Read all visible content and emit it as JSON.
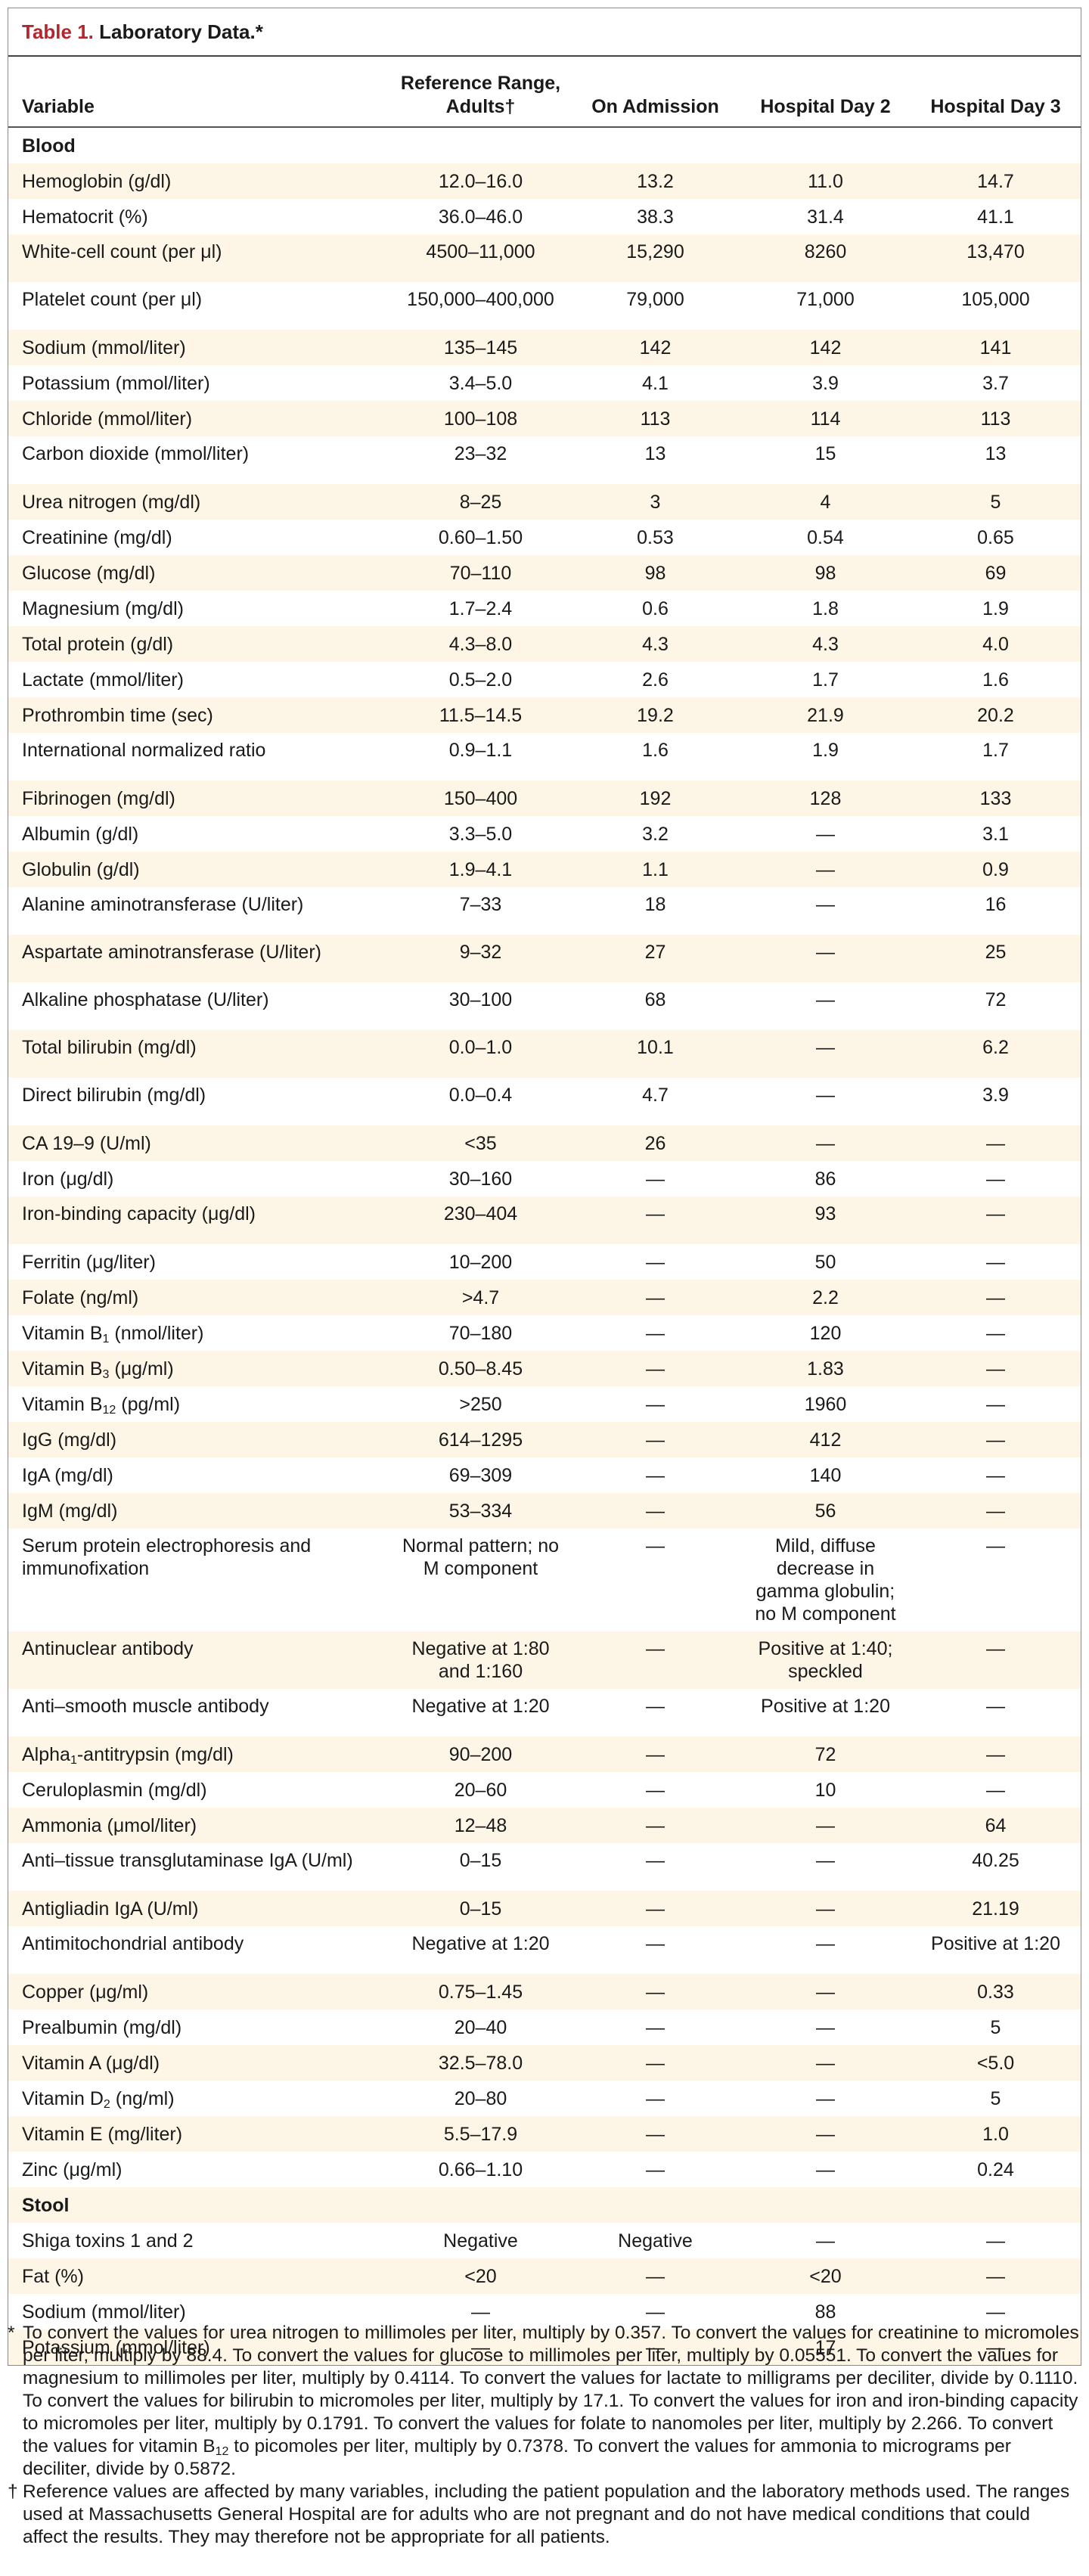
{
  "title": {
    "label": "Table 1.",
    "text": "Laboratory Data.*"
  },
  "table": {
    "header": [
      "Variable",
      "Reference Range, Adults†",
      "On Admission",
      "Hospital Day 2",
      "Hospital Day 3"
    ],
    "rows": [
      {
        "section": "Blood"
      },
      {
        "cells": [
          "Hemoglobin (g/dl)",
          "12.0–16.0",
          "13.2",
          "11.0",
          "14.7"
        ]
      },
      {
        "cells": [
          "Hematocrit (%)",
          "36.0–46.0",
          "38.3",
          "31.4",
          "41.1"
        ]
      },
      {
        "cells": [
          "White-cell count (per μl)",
          "4500–11,000",
          "15,290",
          "8260",
          "13,470"
        ]
      },
      {
        "cells": [
          "Platelet count (per μl)",
          "150,000–400,000",
          "79,000",
          "71,000",
          "105,000"
        ]
      },
      {
        "cells": [
          "Sodium (mmol/liter)",
          "135–145",
          "142",
          "142",
          "141"
        ]
      },
      {
        "cells": [
          "Potassium (mmol/liter)",
          "3.4–5.0",
          "4.1",
          "3.9",
          "3.7"
        ]
      },
      {
        "cells": [
          "Chloride (mmol/liter)",
          "100–108",
          "113",
          "114",
          "113"
        ]
      },
      {
        "cells": [
          "Carbon dioxide (mmol/liter)",
          "23–32",
          "13",
          "15",
          "13"
        ]
      },
      {
        "cells": [
          "Urea nitrogen (mg/dl)",
          "8–25",
          "3",
          "4",
          "5"
        ]
      },
      {
        "cells": [
          "Creatinine (mg/dl)",
          "0.60–1.50",
          "0.53",
          "0.54",
          "0.65"
        ]
      },
      {
        "cells": [
          "Glucose (mg/dl)",
          "70–110",
          "98",
          "98",
          "69"
        ]
      },
      {
        "cells": [
          "Magnesium (mg/dl)",
          "1.7–2.4",
          "0.6",
          "1.8",
          "1.9"
        ]
      },
      {
        "cells": [
          "Total protein (g/dl)",
          "4.3–8.0",
          "4.3",
          "4.3",
          "4.0"
        ]
      },
      {
        "cells": [
          "Lactate (mmol/liter)",
          "0.5–2.0",
          "2.6",
          "1.7",
          "1.6"
        ]
      },
      {
        "cells": [
          "Prothrombin time (sec)",
          "11.5–14.5",
          "19.2",
          "21.9",
          "20.2"
        ]
      },
      {
        "cells": [
          "International normalized ratio",
          "0.9–1.1",
          "1.6",
          "1.9",
          "1.7"
        ]
      },
      {
        "cells": [
          "Fibrinogen (mg/dl)",
          "150–400",
          "192",
          "128",
          "133"
        ]
      },
      {
        "cells": [
          "Albumin (g/dl)",
          "3.3–5.0",
          "3.2",
          "—",
          "3.1"
        ]
      },
      {
        "cells": [
          "Globulin (g/dl)",
          "1.9–4.1",
          "1.1",
          "—",
          "0.9"
        ]
      },
      {
        "cells": [
          "Alanine aminotransferase (U/liter)",
          "7–33",
          "18",
          "—",
          "16"
        ]
      },
      {
        "cells": [
          "Aspartate aminotransferase (U/liter)",
          "9–32",
          "27",
          "—",
          "25"
        ]
      },
      {
        "cells": [
          "Alkaline phosphatase (U/liter)",
          "30–100",
          "68",
          "—",
          "72"
        ]
      },
      {
        "cells": [
          "Total bilirubin (mg/dl)",
          "0.0–1.0",
          "10.1",
          "—",
          "6.2"
        ]
      },
      {
        "cells": [
          "Direct bilirubin (mg/dl)",
          "0.0–0.4",
          "4.7",
          "—",
          "3.9"
        ]
      },
      {
        "cells": [
          "CA 19–9 (U/ml)",
          "<35",
          "26",
          "—",
          "—"
        ]
      },
      {
        "cells": [
          "Iron (μg/dl)",
          "30–160",
          "—",
          "86",
          "—"
        ]
      },
      {
        "cells": [
          "Iron-binding capacity (μg/dl)",
          "230–404",
          "—",
          "93",
          "—"
        ]
      },
      {
        "cells": [
          "Ferritin (μg/liter)",
          "10–200",
          "—",
          "50",
          "—"
        ]
      },
      {
        "cells": [
          "Folate (ng/ml)",
          ">4.7",
          "—",
          "2.2",
          "—"
        ]
      },
      {
        "cells": [
          [
            "Vitamin B",
            "1",
            " (nmol/liter)"
          ],
          "70–180",
          "—",
          "120",
          "—"
        ]
      },
      {
        "cells": [
          [
            "Vitamin B",
            "3",
            " (μg/ml)"
          ],
          "0.50–8.45",
          "—",
          "1.83",
          "—"
        ]
      },
      {
        "cells": [
          [
            "Vitamin B",
            "12",
            " (pg/ml)"
          ],
          ">250",
          "—",
          "1960",
          "—"
        ]
      },
      {
        "cells": [
          "IgG (mg/dl)",
          "614–1295",
          "—",
          "412",
          "—"
        ]
      },
      {
        "cells": [
          "IgA (mg/dl)",
          "69–309",
          "—",
          "140",
          "—"
        ]
      },
      {
        "cells": [
          "IgM (mg/dl)",
          "53–334",
          "—",
          "56",
          "—"
        ]
      },
      {
        "cells": [
          "Serum protein electrophoresis and immunofixation",
          "Normal pattern; no M component",
          "—",
          "Mild, diffuse decrease in gamma globulin; no M component",
          "—"
        ]
      },
      {
        "cells": [
          "Antinuclear antibody",
          "Negative at 1:80 and 1:160",
          "—",
          "Positive at 1:40; speckled",
          "—"
        ]
      },
      {
        "cells": [
          "Anti–smooth muscle antibody",
          "Negative at 1:20",
          "—",
          "Positive at 1:20",
          "—"
        ]
      },
      {
        "cells": [
          [
            "Alpha",
            "1",
            "-antitrypsin (mg/dl)"
          ],
          "90–200",
          "—",
          "72",
          "—"
        ]
      },
      {
        "cells": [
          "Ceruloplasmin (mg/dl)",
          "20–60",
          "—",
          "10",
          "—"
        ]
      },
      {
        "cells": [
          "Ammonia (μmol/liter)",
          "12–48",
          "—",
          "—",
          "64"
        ]
      },
      {
        "cells": [
          "Anti–tissue transglutaminase IgA (U/ml)",
          "0–15",
          "—",
          "—",
          "40.25"
        ]
      },
      {
        "cells": [
          "Antigliadin IgA (U/ml)",
          "0–15",
          "—",
          "—",
          "21.19"
        ]
      },
      {
        "cells": [
          "Antimitochondrial antibody",
          "Negative at 1:20",
          "—",
          "—",
          "Positive at 1:20"
        ]
      },
      {
        "cells": [
          "Copper (μg/ml)",
          "0.75–1.45",
          "—",
          "—",
          "0.33"
        ]
      },
      {
        "cells": [
          "Prealbumin (mg/dl)",
          "20–40",
          "—",
          "—",
          "5"
        ]
      },
      {
        "cells": [
          "Vitamin A (μg/dl)",
          "32.5–78.0",
          "—",
          "—",
          "<5.0"
        ]
      },
      {
        "cells": [
          [
            "Vitamin D",
            "2",
            " (ng/ml)"
          ],
          "20–80",
          "—",
          "—",
          "5"
        ]
      },
      {
        "cells": [
          "Vitamin E (mg/liter)",
          "5.5–17.9",
          "—",
          "—",
          "1.0"
        ]
      },
      {
        "cells": [
          "Zinc (μg/ml)",
          "0.66–1.10",
          "—",
          "—",
          "0.24"
        ]
      },
      {
        "section": "Stool"
      },
      {
        "cells": [
          "Shiga toxins 1 and 2",
          "Negative",
          "Negative",
          "—",
          "—"
        ]
      },
      {
        "cells": [
          "Fat (%)",
          "<20",
          "—",
          "<20",
          "—"
        ]
      },
      {
        "cells": [
          "Sodium (mmol/liter)",
          "—",
          "—",
          "88",
          "—"
        ]
      },
      {
        "cells": [
          "Potassium (mmol/liter)",
          "—",
          "—",
          "17",
          "—"
        ]
      }
    ]
  },
  "footnotes": [
    {
      "mark": "*",
      "text": [
        "To convert the values for urea nitrogen to millimoles per liter, multiply by 0.357. To convert the values for creatinine to micromoles per liter, multiply by 88.4. To convert the values for glucose to millimoles per liter, multiply by 0.05551. To convert the values for magnesium to millimoles per liter, multiply by 0.4114. To convert the values for lactate to milligrams per deciliter, divide by 0.1110. To convert the values for bilirubin to micromoles per liter, multiply by 17.1. To convert the values for iron and iron-binding capacity to micromoles per liter, multiply by 0.1791. To convert the values for folate to nanomoles per liter, multiply by 2.266. To convert the values for vitamin B",
        "12",
        " to picomoles per liter, multiply by 0.7378. To convert the values for ammonia to micrograms per deciliter, divide by 0.5872."
      ]
    },
    {
      "mark": "†",
      "text": "Reference values are affected by many variables, including the patient population and the laboratory methods used. The ranges used at Massachusetts General Hospital are for adults who are not pregnant and do not have medical conditions that could affect the results. They may therefore not be appropriate for all patients."
    }
  ]
}
